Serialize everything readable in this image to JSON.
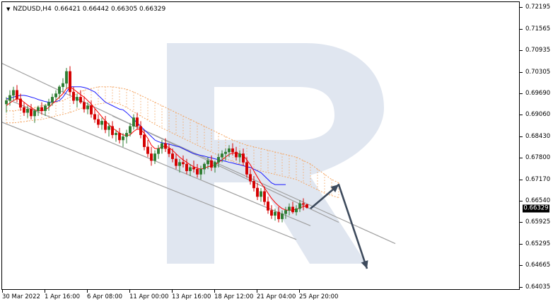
{
  "chart_header": {
    "symbol": "NZDUSD,H4",
    "ohlc": "0.66421 0.66442 0.66305 0.66329"
  },
  "price_axis": {
    "labels": [
      "0.72195",
      "0.71565",
      "0.70935",
      "0.70305",
      "0.69690",
      "0.69060",
      "0.68430",
      "0.67800",
      "0.67170",
      "0.66540",
      "0.65925",
      "0.65295",
      "0.64665",
      "0.64035"
    ],
    "current_price": "0.66329"
  },
  "time_axis": {
    "labels": [
      "30 Mar 2022",
      "1 Apr 16:00",
      "6 Apr 08:00",
      "11 Apr 00:00",
      "13 Apr 16:00",
      "18 Apr 12:00",
      "21 Apr 04:00",
      "25 Apr 20:00"
    ]
  },
  "colors": {
    "bull_candle": "#2e7d32",
    "bear_candle": "#d50000",
    "fast_ma": "#ff0000",
    "slow_ma": "#1a1aff",
    "cloud": "#f4a460",
    "channel": "#a0a0a0",
    "forecast_arrow": "#3d4a5c",
    "watermark": "#d8e0ec"
  },
  "chart_data": {
    "type": "candlestick",
    "ylim": [
      0.64035,
      0.72195
    ],
    "bar_count": 90,
    "candles": [
      [
        0.6935,
        0.6955,
        0.691,
        0.6945
      ],
      [
        0.6945,
        0.6975,
        0.693,
        0.696
      ],
      [
        0.696,
        0.6985,
        0.6945,
        0.6975
      ],
      [
        0.6975,
        0.699,
        0.694,
        0.695
      ],
      [
        0.695,
        0.6965,
        0.6915,
        0.6925
      ],
      [
        0.6925,
        0.694,
        0.69,
        0.691
      ],
      [
        0.691,
        0.693,
        0.6895,
        0.692
      ],
      [
        0.692,
        0.6935,
        0.689,
        0.69
      ],
      [
        0.69,
        0.692,
        0.688,
        0.6915
      ],
      [
        0.6915,
        0.693,
        0.69,
        0.6925
      ],
      [
        0.6925,
        0.694,
        0.6905,
        0.6915
      ],
      [
        0.6915,
        0.6935,
        0.69,
        0.693
      ],
      [
        0.693,
        0.695,
        0.6915,
        0.694
      ],
      [
        0.694,
        0.6965,
        0.693,
        0.6955
      ],
      [
        0.6955,
        0.6975,
        0.6945,
        0.6965
      ],
      [
        0.6965,
        0.699,
        0.695,
        0.6985
      ],
      [
        0.6985,
        0.701,
        0.697,
        0.6995
      ],
      [
        0.6995,
        0.704,
        0.698,
        0.703
      ],
      [
        0.703,
        0.7045,
        0.696,
        0.697
      ],
      [
        0.697,
        0.6985,
        0.6935,
        0.6945
      ],
      [
        0.6945,
        0.6965,
        0.6925,
        0.6955
      ],
      [
        0.6955,
        0.6975,
        0.6935,
        0.694
      ],
      [
        0.694,
        0.6955,
        0.691,
        0.692
      ],
      [
        0.692,
        0.694,
        0.6905,
        0.693
      ],
      [
        0.693,
        0.6945,
        0.6895,
        0.6905
      ],
      [
        0.6905,
        0.692,
        0.688,
        0.689
      ],
      [
        0.689,
        0.6905,
        0.6865,
        0.6875
      ],
      [
        0.6875,
        0.6895,
        0.686,
        0.6885
      ],
      [
        0.6885,
        0.69,
        0.685,
        0.686
      ],
      [
        0.686,
        0.688,
        0.684,
        0.687
      ],
      [
        0.687,
        0.6885,
        0.6835,
        0.6845
      ],
      [
        0.6845,
        0.686,
        0.6825,
        0.685
      ],
      [
        0.685,
        0.6865,
        0.682,
        0.683
      ],
      [
        0.683,
        0.685,
        0.681,
        0.684
      ],
      [
        0.684,
        0.686,
        0.682,
        0.685
      ],
      [
        0.685,
        0.688,
        0.684,
        0.687
      ],
      [
        0.687,
        0.6905,
        0.686,
        0.6895
      ],
      [
        0.6895,
        0.691,
        0.686,
        0.687
      ],
      [
        0.687,
        0.6885,
        0.6835,
        0.6845
      ],
      [
        0.6845,
        0.686,
        0.68,
        0.681
      ],
      [
        0.681,
        0.683,
        0.678,
        0.679
      ],
      [
        0.679,
        0.681,
        0.6755,
        0.677
      ],
      [
        0.677,
        0.68,
        0.676,
        0.679
      ],
      [
        0.679,
        0.6815,
        0.6775,
        0.6805
      ],
      [
        0.6805,
        0.683,
        0.679,
        0.682
      ],
      [
        0.682,
        0.6835,
        0.6795,
        0.6805
      ],
      [
        0.6805,
        0.682,
        0.678,
        0.679
      ],
      [
        0.679,
        0.6805,
        0.6765,
        0.6775
      ],
      [
        0.6775,
        0.679,
        0.6745,
        0.6755
      ],
      [
        0.6755,
        0.6775,
        0.6735,
        0.6765
      ],
      [
        0.6765,
        0.6785,
        0.675,
        0.676
      ],
      [
        0.676,
        0.6775,
        0.673,
        0.674
      ],
      [
        0.674,
        0.676,
        0.6725,
        0.675
      ],
      [
        0.675,
        0.677,
        0.6735,
        0.6745
      ],
      [
        0.6745,
        0.676,
        0.672,
        0.673
      ],
      [
        0.673,
        0.6755,
        0.6715,
        0.6745
      ],
      [
        0.6745,
        0.6765,
        0.673,
        0.676
      ],
      [
        0.676,
        0.678,
        0.6745,
        0.677
      ],
      [
        0.677,
        0.6785,
        0.674,
        0.675
      ],
      [
        0.675,
        0.677,
        0.6735,
        0.6765
      ],
      [
        0.6765,
        0.679,
        0.675,
        0.678
      ],
      [
        0.678,
        0.68,
        0.6765,
        0.679
      ],
      [
        0.679,
        0.6805,
        0.677,
        0.6795
      ],
      [
        0.6795,
        0.6815,
        0.678,
        0.6805
      ],
      [
        0.6805,
        0.682,
        0.6785,
        0.6795
      ],
      [
        0.6795,
        0.681,
        0.677,
        0.678
      ],
      [
        0.678,
        0.68,
        0.6765,
        0.679
      ],
      [
        0.679,
        0.6805,
        0.6755,
        0.6765
      ],
      [
        0.6765,
        0.678,
        0.672,
        0.673
      ],
      [
        0.673,
        0.6745,
        0.67,
        0.671
      ],
      [
        0.671,
        0.6725,
        0.668,
        0.669
      ],
      [
        0.669,
        0.6705,
        0.6655,
        0.6665
      ],
      [
        0.6665,
        0.669,
        0.665,
        0.668
      ],
      [
        0.668,
        0.6695,
        0.664,
        0.665
      ],
      [
        0.665,
        0.6665,
        0.6615,
        0.6625
      ],
      [
        0.6625,
        0.664,
        0.66,
        0.661
      ],
      [
        0.661,
        0.663,
        0.6595,
        0.662
      ],
      [
        0.662,
        0.6635,
        0.659,
        0.66
      ],
      [
        0.66,
        0.6625,
        0.659,
        0.6615
      ],
      [
        0.6615,
        0.6635,
        0.66,
        0.6625
      ],
      [
        0.6625,
        0.6645,
        0.661,
        0.6635
      ],
      [
        0.6635,
        0.665,
        0.6615,
        0.662
      ],
      [
        0.662,
        0.664,
        0.661,
        0.663
      ],
      [
        0.663,
        0.6655,
        0.662,
        0.6645
      ],
      [
        0.6645,
        0.666,
        0.6625,
        0.6642
      ],
      [
        0.6642,
        0.6644,
        0.663,
        0.6633
      ]
    ],
    "fast_ma": [
      0.693,
      0.6938,
      0.6945,
      0.695,
      0.6948,
      0.694,
      0.6932,
      0.6925,
      0.6918,
      0.6915,
      0.6915,
      0.6918,
      0.6925,
      0.6935,
      0.6945,
      0.6955,
      0.6965,
      0.698,
      0.6985,
      0.6978,
      0.697,
      0.6962,
      0.6955,
      0.6945,
      0.6935,
      0.6922,
      0.691,
      0.6898,
      0.6885,
      0.6875,
      0.6865,
      0.6858,
      0.685,
      0.6845,
      0.6843,
      0.6845,
      0.6855,
      0.6862,
      0.686,
      0.685,
      0.6835,
      0.6815,
      0.6805,
      0.6805,
      0.681,
      0.6812,
      0.6808,
      0.68,
      0.679,
      0.678,
      0.6772,
      0.6765,
      0.6758,
      0.6752,
      0.6748,
      0.6745,
      0.6748,
      0.6752,
      0.6755,
      0.6758,
      0.6765,
      0.6772,
      0.678,
      0.6788,
      0.6792,
      0.6792,
      0.679,
      0.6785,
      0.6772,
      0.6758,
      0.674,
      0.6722,
      0.6705,
      0.669,
      0.6675,
      0.666,
      0.6648,
      0.6638,
      0.663,
      0.6626,
      0.6625,
      0.6626,
      0.6628,
      0.6632,
      0.6636,
      0.664
    ],
    "slow_ma": [
      0.695,
      0.6952,
      0.6955,
      0.6958,
      0.696,
      0.696,
      0.6958,
      0.6955,
      0.6952,
      0.6948,
      0.6945,
      0.6942,
      0.694,
      0.694,
      0.6942,
      0.6945,
      0.6955,
      0.697,
      0.6985,
      0.6985,
      0.6985,
      0.6985,
      0.6983,
      0.698,
      0.6975,
      0.697,
      0.696,
      0.695,
      0.694,
      0.6935,
      0.693,
      0.6925,
      0.692,
      0.6918,
      0.691,
      0.69,
      0.689,
      0.688,
      0.687,
      0.686,
      0.685,
      0.684,
      0.683,
      0.6825,
      0.6822,
      0.682,
      0.6818,
      0.6815,
      0.6812,
      0.681,
      0.6805,
      0.68,
      0.6795,
      0.679,
      0.6788,
      0.6785,
      0.6783,
      0.678,
      0.6778,
      0.6775,
      0.6773,
      0.677,
      0.6768,
      0.6765,
      0.6763,
      0.676,
      0.6758,
      0.6755,
      0.6752,
      0.675,
      0.6745,
      0.674,
      0.6735,
      0.6725,
      0.6715,
      0.6705,
      0.67,
      0.67,
      0.67,
      0.67
    ],
    "cloud_top": [
      0.6915,
      0.6915,
      0.6918,
      0.692,
      0.6925,
      0.693,
      0.6935,
      0.694,
      0.6945,
      0.6955,
      0.6965,
      0.6975,
      0.698,
      0.6985,
      0.6985,
      0.6985,
      0.6982,
      0.6978,
      0.697,
      0.696,
      0.695,
      0.694,
      0.693,
      0.692,
      0.691,
      0.69,
      0.689,
      0.688,
      0.687,
      0.686,
      0.685,
      0.684,
      0.683,
      0.6822,
      0.6815,
      0.681,
      0.6805,
      0.68,
      0.6795,
      0.679,
      0.6785,
      0.678,
      0.677,
      0.676,
      0.6745,
      0.673,
      0.6715,
      0.6705
    ],
    "cloud_bottom": [
      0.688,
      0.688,
      0.6882,
      0.6885,
      0.6888,
      0.689,
      0.6895,
      0.69,
      0.6905,
      0.691,
      0.6918,
      0.6925,
      0.693,
      0.6935,
      0.6938,
      0.694,
      0.6935,
      0.6925,
      0.6912,
      0.69,
      0.6888,
      0.6876,
      0.6865,
      0.6855,
      0.6845,
      0.6835,
      0.6825,
      0.6815,
      0.6805,
      0.6795,
      0.6785,
      0.6775,
      0.6768,
      0.676,
      0.6752,
      0.6745,
      0.674,
      0.6735,
      0.673,
      0.6725,
      0.672,
      0.6715,
      0.6705,
      0.6695,
      0.6685,
      0.6675,
      0.6668,
      0.6662
    ],
    "cloud_start_index": 0,
    "cloud_step": 2,
    "channel_upper": [
      [
        0.7057,
        -2
      ],
      [
        0.659,
        94
      ]
    ],
    "channel_mid": [
      [
        0.695,
        0
      ],
      [
        0.658,
        86
      ]
    ],
    "channel_lower": [
      [
        0.69,
        30
      ],
      [
        0.6528,
        110
      ]
    ],
    "channel_inner": [
      [
        0.6885,
        -2
      ],
      [
        0.654,
        82
      ]
    ],
    "forecast": [
      [
        0.663,
        86
      ],
      [
        0.67,
        94
      ],
      [
        0.6455,
        102
      ]
    ]
  }
}
